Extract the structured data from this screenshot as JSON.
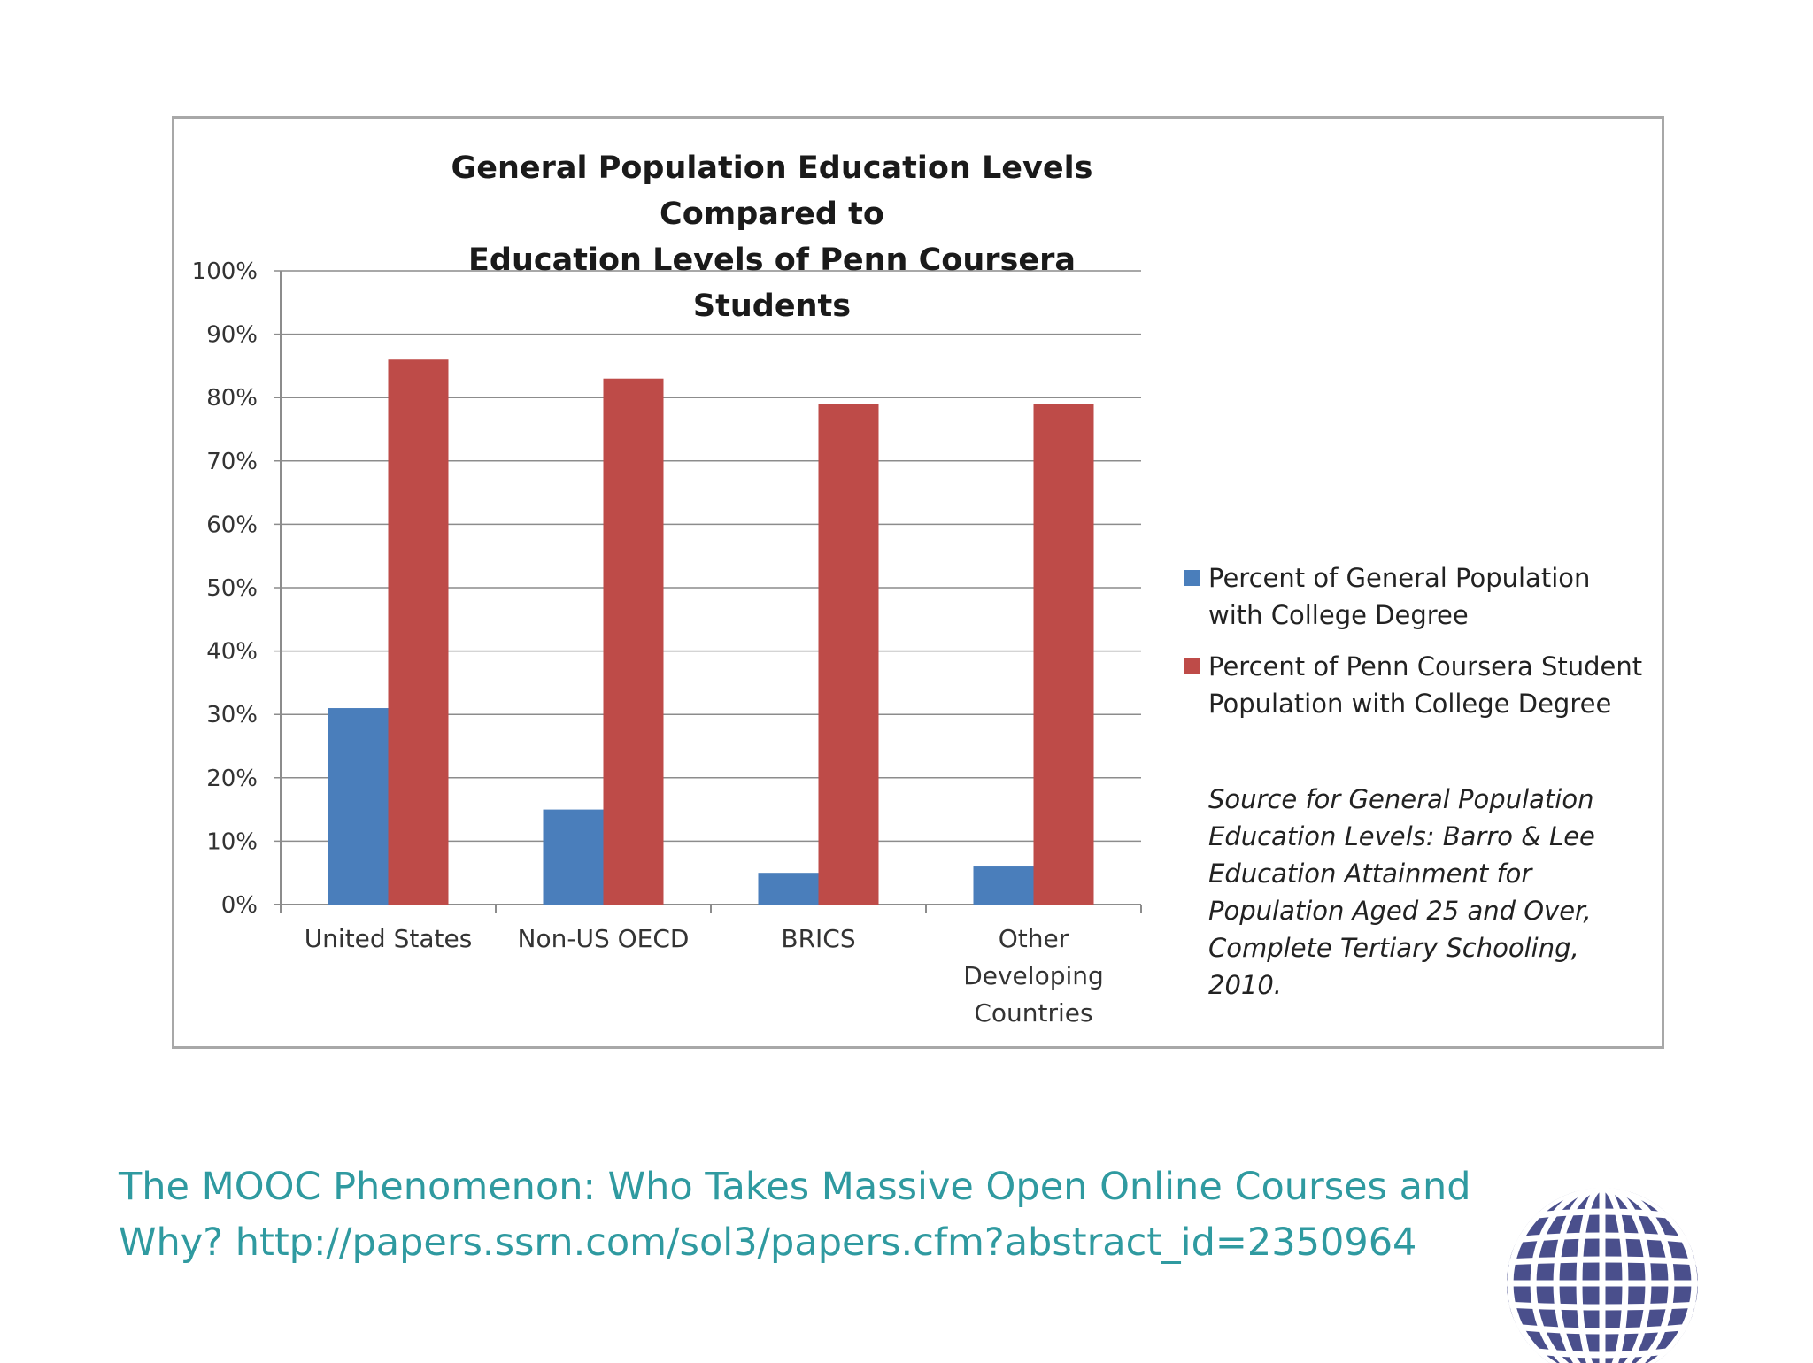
{
  "chart_data": {
    "type": "bar",
    "title": "General Population Education Levels Compared to\nEducation Levels of Penn Coursera Students",
    "categories": [
      [
        "United States"
      ],
      [
        "Non-US OECD"
      ],
      [
        "BRICS"
      ],
      [
        "Other",
        "Developing",
        "Countries"
      ]
    ],
    "series": [
      {
        "name": "Percent of General Population with College Degree",
        "color": "#4a7ebb",
        "values": [
          31,
          15,
          5,
          6
        ]
      },
      {
        "name": "Percent of Penn Coursera Student Population with College Degree",
        "color": "#be4b48",
        "values": [
          86,
          83,
          79,
          79
        ]
      }
    ],
    "ylim": [
      0,
      100
    ],
    "yticks": [
      0,
      10,
      20,
      30,
      40,
      50,
      60,
      70,
      80,
      90,
      100
    ],
    "ytick_suffix": "%",
    "grid": true,
    "legend_placement": "right",
    "xlabel": "",
    "ylabel": ""
  },
  "source_note": "Source for General Population Education Levels: Barro & Lee Education Attainment for Population Aged 25 and Over, Complete Tertiary Schooling, 2010.",
  "caption": "The MOOC Phenomenon: Who Takes Massive Open Online Courses and Why? http://papers.ssrn.com/sol3/papers.cfm?abstract_id=2350964",
  "logo": {
    "icon": "globe-icon",
    "color": "#4a4f8c"
  }
}
